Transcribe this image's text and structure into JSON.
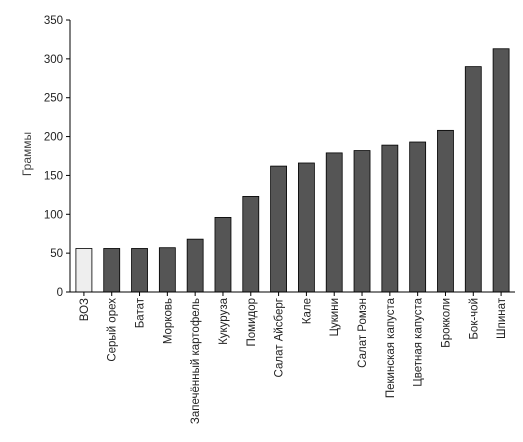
{
  "chart_data": {
    "type": "bar",
    "title": "",
    "xlabel": "",
    "ylabel": "Граммы",
    "ylim": [
      0,
      350
    ],
    "yticks": [
      0,
      50,
      100,
      150,
      200,
      250,
      300,
      350
    ],
    "grid": false,
    "legend": "none",
    "categories": [
      "ВОЗ",
      "Серый орех",
      "Батат",
      "Морковь",
      "Запечённый картофель",
      "Кукуруза",
      "Помидор",
      "Салат Айсберг",
      "Кале",
      "Цукини",
      "Салат Ромэн",
      "Пекинская капуста",
      "Цветная капуста",
      "Брокколи",
      "Бок-чой",
      "Шпинат"
    ],
    "values": [
      56,
      56,
      56,
      57,
      68,
      96,
      123,
      162,
      166,
      179,
      182,
      189,
      193,
      208,
      290,
      313
    ],
    "colors": {
      "highlight": "#eeeeee",
      "bar": "#555555",
      "bar_stroke": "#000000",
      "axis": "#000000"
    },
    "highlight_index": 0
  }
}
